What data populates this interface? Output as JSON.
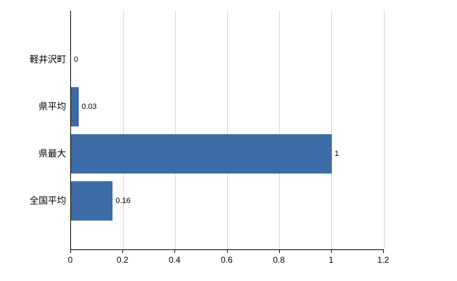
{
  "chart_data": {
    "type": "bar",
    "orientation": "horizontal",
    "title": "",
    "xlabel": "",
    "ylabel": "",
    "categories": [
      "軽井沢町",
      "県平均",
      "県最大",
      "全国平均"
    ],
    "values": [
      0,
      0.03,
      1,
      0.16
    ],
    "value_labels": [
      "0",
      "0.03",
      "1",
      "0.16"
    ],
    "xlim": [
      0,
      1.2
    ],
    "x_ticks": [
      0,
      0.2,
      0.4,
      0.6,
      0.8,
      1,
      1.2
    ],
    "x_tick_labels": [
      "0",
      "0.2",
      "0.4",
      "0.6",
      "0.8",
      "1",
      "1.2"
    ],
    "grid": true,
    "legend": "none",
    "bar_color": "#3d6da6",
    "grid_color": "#d9d9d9",
    "axis_color": "#000000",
    "background_color": "#ffffff"
  }
}
